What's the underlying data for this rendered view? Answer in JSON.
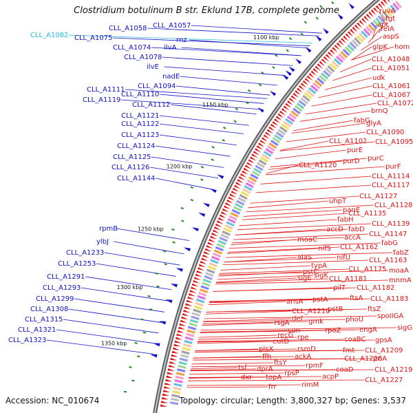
{
  "title": "Clostridium botulinum B str. Eklund 17B, complete genome",
  "accession": "Accession: NC_010674",
  "stats": "Topology: circular; Length: 3,800,327 bp; Genes: 3,537",
  "colors": {
    "forward_genes": "#1010c8",
    "reverse_genes": "#e01010",
    "highlight_gene": "#22b8e0",
    "backbone": "#808080",
    "gc_marks": "#1a8a1a"
  },
  "scale_labels": [
    "1100 kbp",
    "1150 kbp",
    "1200 kbp",
    "1250 kbp",
    "1300 kbp",
    "1350 kbp"
  ],
  "left_labels": [
    {
      "text": "CLL_A1082",
      "highlight": true
    },
    {
      "text": "CLL_A1058"
    },
    {
      "text": "CLL_A1057"
    },
    {
      "text": "rnz"
    },
    {
      "text": "CLL_A1075"
    },
    {
      "text": "CLL_A1074"
    },
    {
      "text": "ilvA"
    },
    {
      "text": "CLL_A1078"
    },
    {
      "text": "ilvE"
    },
    {
      "text": "nadE"
    },
    {
      "text": "CLL_A1094"
    },
    {
      "text": "CLL_A1111"
    },
    {
      "text": "CLL_A1110"
    },
    {
      "text": "CLL_A1119"
    },
    {
      "text": "CLL_A1112"
    },
    {
      "text": "CLL_A1121"
    },
    {
      "text": "CLL_A1122"
    },
    {
      "text": "CLL_A1123"
    },
    {
      "text": "CLL_A1124"
    },
    {
      "text": "CLL_A1125"
    },
    {
      "text": "CLL_A1126"
    },
    {
      "text": "CLL_A1144"
    },
    {
      "text": "rpmB"
    },
    {
      "text": "ylbJ"
    },
    {
      "text": "CLL_A1233"
    },
    {
      "text": "CLL_A1253"
    },
    {
      "text": "CLL_A1291"
    },
    {
      "text": "CLL_A1293"
    },
    {
      "text": "CLL_A1299"
    },
    {
      "text": "CLL_A1308"
    },
    {
      "text": "CLL_A1315"
    },
    {
      "text": "CLL_A1321"
    },
    {
      "text": "CLL_A1323"
    }
  ],
  "right_labels": [
    "ruvA",
    "tgt",
    "apt",
    "relA",
    "aspS",
    "glpK",
    "hom",
    "CLL_A1048",
    "CLL_A1051",
    "udk",
    "CLL_A1061",
    "CLL_A1067",
    "CLL_A1072",
    "brnQ",
    "fabG",
    "glyA",
    "CLL_A1090",
    "CLL_A1102",
    "CLL_A1095",
    "purE",
    "purC",
    "purD",
    "CLL_A1120",
    "purF",
    "CLL_A1114",
    "CLL_A1117",
    "CLL_A1127",
    "uhpT",
    "CLL_A1128",
    "panE",
    "CLL_A1135",
    "fabH",
    "CLL_A1139",
    "accD",
    "fabD",
    "accA",
    "CLL_A1147",
    "moaC",
    "fabG",
    "nifS",
    "CLL_A1162",
    "fabZ",
    "alaS",
    "nifU",
    "CLL_A1163",
    "typA",
    "CLL_A1175",
    "moaA",
    "sigE",
    "sigK",
    "CLL_A1181",
    "mnmA",
    "pilT",
    "CLL_A1182",
    "pstC",
    "ftsA",
    "CLL_A1183",
    "ansA",
    "pstA",
    "ftsZ",
    "CLL_A1210",
    "pstB",
    "spoIIGA",
    "rsgA",
    "def",
    "gmk",
    "phoU",
    "sun",
    "rpoZ",
    "engA",
    "sigG",
    "recG",
    "rpe",
    "coaBC",
    "gpsA",
    "eutD",
    "fmt",
    "rsmD",
    "CLL_A1209",
    "plsX",
    "ackA",
    "CLL_A1226",
    "priA",
    "ffh",
    "ftsY",
    "rpmF",
    "coaD",
    "CLL_A1219",
    "tsf",
    "dprA",
    "rpsP",
    "acpP",
    "CLL_A1227",
    "dxr",
    "topA",
    "rimM",
    "frr"
  ]
}
